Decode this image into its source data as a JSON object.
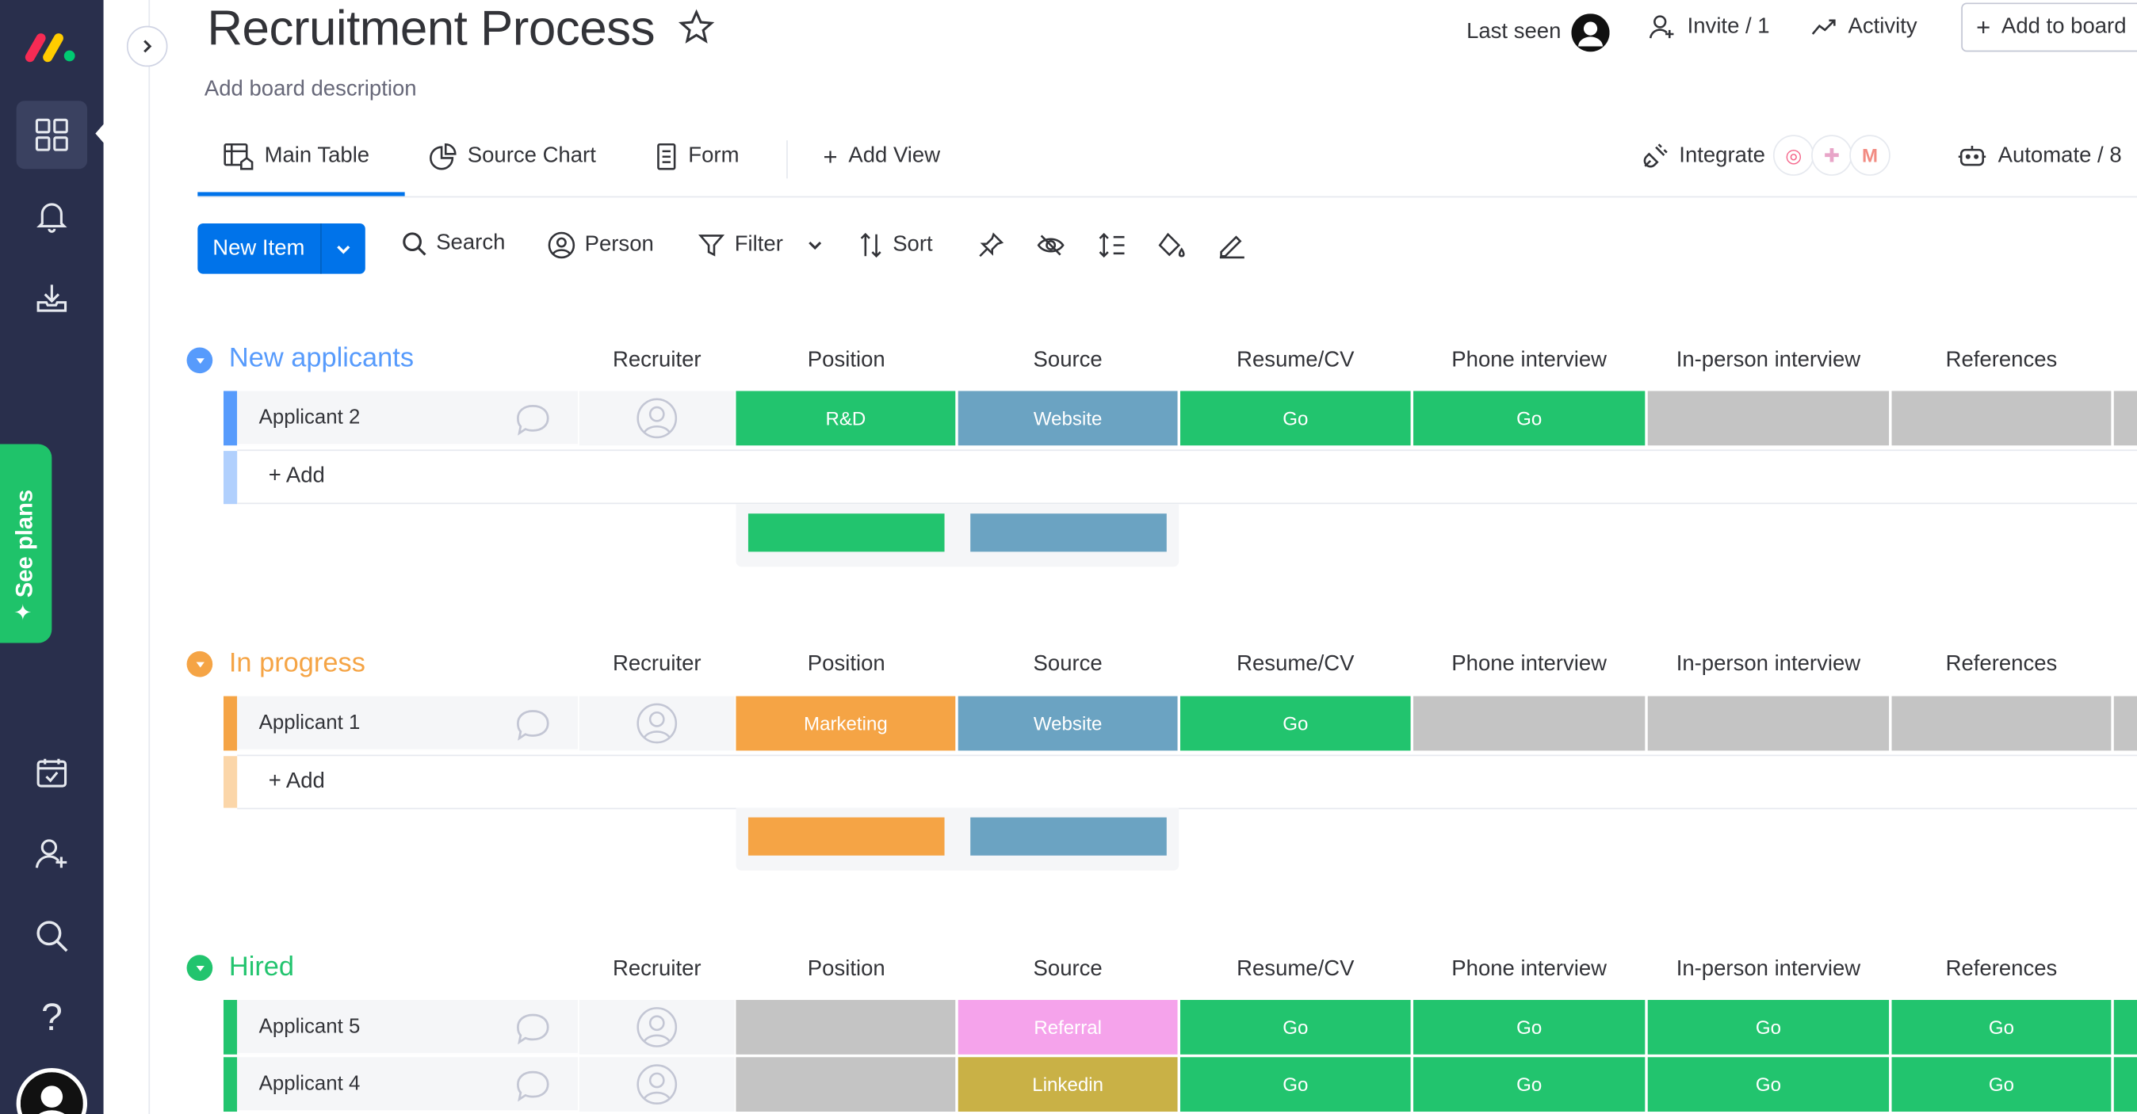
{
  "board": {
    "title": "Recruitment Process",
    "description": "Add board description"
  },
  "header": {
    "last_seen": "Last seen",
    "invite": "Invite / 1",
    "activity": "Activity",
    "add_to_board": "Add to board"
  },
  "sidebar": {
    "see_plans": "See plans"
  },
  "views": {
    "main_table": "Main Table",
    "source_chart": "Source Chart",
    "form": "Form",
    "add_view": "Add View",
    "integrate": "Integrate",
    "automate": "Automate / 8"
  },
  "toolbar": {
    "new_item": "New Item",
    "search": "Search",
    "person": "Person",
    "filter": "Filter",
    "sort": "Sort"
  },
  "columns": [
    "Recruiter",
    "Position",
    "Source",
    "Resume/CV",
    "Phone interview",
    "In-person interview",
    "References"
  ],
  "add_label": "+ Add",
  "colors": {
    "green": "#22c46e",
    "blue_source": "#6ba3c2",
    "orange": "#f5a445",
    "grey_empty": "#c4c4c4",
    "pink": "#f5a3eb",
    "olive": "#c9b146",
    "group_new": "#579bfc",
    "group_progress": "#f5a445",
    "group_hired": "#22c46e"
  },
  "groups": [
    {
      "title": "New applicants",
      "rows": [
        {
          "name": "Applicant 2",
          "position": "R&D",
          "source": "Website",
          "resume": "Go",
          "phone": "Go",
          "inperson": "",
          "references": ""
        }
      ]
    },
    {
      "title": "In progress",
      "rows": [
        {
          "name": "Applicant 1",
          "position": "Marketing",
          "source": "Website",
          "resume": "Go",
          "phone": "",
          "inperson": "",
          "references": ""
        }
      ]
    },
    {
      "title": "Hired",
      "rows": [
        {
          "name": "Applicant 5",
          "position": "",
          "source": "Referral",
          "resume": "Go",
          "phone": "Go",
          "inperson": "Go",
          "references": "Go"
        },
        {
          "name": "Applicant 4",
          "position": "",
          "source": "Linkedin",
          "resume": "Go",
          "phone": "Go",
          "inperson": "Go",
          "references": "Go"
        }
      ]
    }
  ]
}
